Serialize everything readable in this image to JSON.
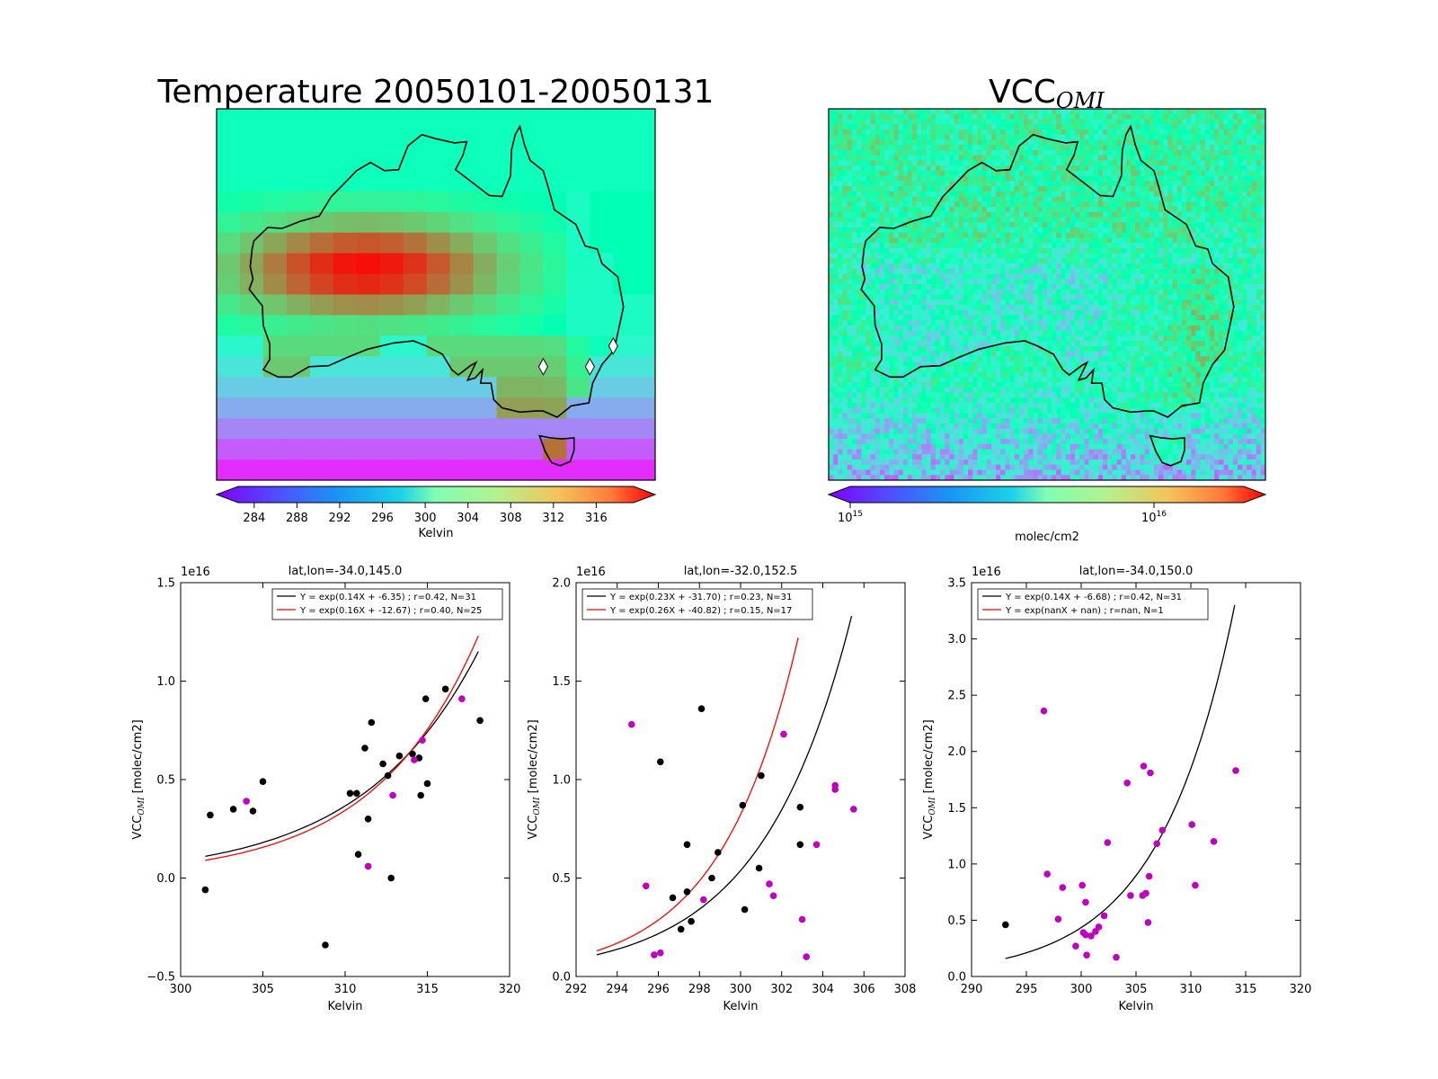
{
  "colors": {
    "black_series": "#000000",
    "red_series": "#ff0000",
    "magenta_points": "#bf00bf",
    "colormap": "rainbow"
  },
  "maps": [
    {
      "id": "temperature-map",
      "title": "Temperature 20050101-20050131",
      "colorbar": {
        "label": "Kelvin",
        "ticks": [
          "284",
          "288",
          "292",
          "296",
          "300",
          "304",
          "308",
          "312",
          "316"
        ],
        "range": [
          282.5,
          319.5
        ],
        "extend": "both"
      },
      "markers": [
        {
          "lat": -34.0,
          "lon": 145.0
        },
        {
          "lat": -34.0,
          "lon": 150.0
        },
        {
          "lat": -32.0,
          "lon": 152.5
        }
      ],
      "box": {
        "lat": [
          -38.5,
          -28.5
        ],
        "lon": [
          143.5,
          153.5
        ]
      }
    },
    {
      "id": "vcc-map",
      "title": "VCC",
      "title_sub": "OMI",
      "colorbar": {
        "label": "molec/cm2",
        "ticks": [
          {
            "base": "10",
            "exp": "15"
          },
          {
            "base": "10",
            "exp": "16"
          }
        ],
        "scale": "log",
        "extend": "both"
      }
    }
  ],
  "chart_data": [
    {
      "type": "scatter",
      "title": "lat,lon=-34.0,145.0",
      "xlabel": "Kelvin",
      "ylabel": "VCC",
      "ylabel_sub": "OMI",
      "ylabel_unit": " [molec/cm2]",
      "offset_text": "1e16",
      "xlim": [
        300,
        320
      ],
      "ylim": [
        -0.5,
        1.5
      ],
      "xticks": [
        "300",
        "305",
        "310",
        "315",
        "320"
      ],
      "yticks": [
        "−0.5",
        "0.0",
        "0.5",
        "1.0",
        "1.5"
      ],
      "legend": {
        "position": "upper right",
        "entries": [
          "Y = exp(0.14X + -6.35) ; r=0.42, N=31",
          "Y = exp(0.16X + -12.67) ; r=0.40, N=25"
        ]
      },
      "fits": [
        {
          "color": "black",
          "x_range": [
            301.5,
            318.1
          ],
          "y_range": [
            0.11,
            1.15
          ]
        },
        {
          "color": "red",
          "x_range": [
            301.5,
            318.1
          ],
          "y_range": [
            0.09,
            1.23
          ]
        }
      ],
      "points_black": [
        [
          301.5,
          -0.06
        ],
        [
          301.8,
          0.32
        ],
        [
          303.2,
          0.35
        ],
        [
          304.4,
          0.34
        ],
        [
          305.0,
          0.49
        ],
        [
          308.8,
          -0.34
        ],
        [
          310.3,
          0.43
        ],
        [
          310.7,
          0.43
        ],
        [
          310.8,
          0.12
        ],
        [
          311.2,
          0.66
        ],
        [
          311.4,
          0.3
        ],
        [
          311.6,
          0.79
        ],
        [
          312.3,
          0.58
        ],
        [
          312.6,
          0.52
        ],
        [
          312.8,
          0.0
        ],
        [
          313.3,
          0.62
        ],
        [
          314.1,
          0.63
        ],
        [
          314.5,
          0.61
        ],
        [
          314.6,
          0.42
        ],
        [
          314.9,
          0.91
        ],
        [
          315.0,
          0.48
        ],
        [
          316.1,
          0.96
        ],
        [
          318.2,
          0.8
        ]
      ],
      "points_magenta": [
        [
          304.0,
          0.39
        ],
        [
          311.4,
          0.06
        ],
        [
          312.9,
          0.42
        ],
        [
          314.2,
          0.6
        ],
        [
          314.7,
          0.7
        ],
        [
          317.1,
          0.91
        ]
      ]
    },
    {
      "type": "scatter",
      "title": "lat,lon=-32.0,152.5",
      "xlabel": "Kelvin",
      "ylabel": "VCC",
      "ylabel_sub": "OMI",
      "ylabel_unit": " [molec/cm2]",
      "offset_text": "1e16",
      "xlim": [
        292,
        308
      ],
      "ylim": [
        0.0,
        2.0
      ],
      "xticks": [
        "292",
        "294",
        "296",
        "298",
        "300",
        "302",
        "304",
        "306",
        "308"
      ],
      "yticks": [
        "0.0",
        "0.5",
        "1.0",
        "1.5",
        "2.0"
      ],
      "legend": {
        "position": "upper left",
        "entries": [
          "Y = exp(0.23X + -31.70) ; r=0.23, N=31",
          "Y = exp(0.26X + -40.82) ; r=0.15, N=17"
        ]
      },
      "fits": [
        {
          "color": "black",
          "x_range": [
            293.0,
            305.4
          ],
          "y_range": [
            0.11,
            1.83
          ]
        },
        {
          "color": "red",
          "x_range": [
            293.0,
            302.8
          ],
          "y_range": [
            0.13,
            1.72
          ]
        }
      ],
      "points_black": [
        [
          296.1,
          1.09
        ],
        [
          296.7,
          0.4
        ],
        [
          297.1,
          0.24
        ],
        [
          297.4,
          0.67
        ],
        [
          297.4,
          0.43
        ],
        [
          297.6,
          0.28
        ],
        [
          298.1,
          1.36
        ],
        [
          298.6,
          0.5
        ],
        [
          298.9,
          0.63
        ],
        [
          300.1,
          0.87
        ],
        [
          300.2,
          0.34
        ],
        [
          300.9,
          0.55
        ],
        [
          301.0,
          1.02
        ],
        [
          302.9,
          0.86
        ],
        [
          302.9,
          0.67
        ]
      ],
      "points_magenta": [
        [
          294.7,
          1.28
        ],
        [
          295.4,
          0.46
        ],
        [
          295.8,
          0.11
        ],
        [
          296.1,
          0.12
        ],
        [
          298.2,
          0.39
        ],
        [
          301.4,
          0.47
        ],
        [
          301.6,
          0.41
        ],
        [
          302.1,
          1.23
        ],
        [
          303.0,
          0.29
        ],
        [
          303.2,
          0.1
        ],
        [
          303.7,
          0.67
        ],
        [
          304.6,
          0.97
        ],
        [
          304.6,
          0.95
        ],
        [
          305.5,
          0.85
        ]
      ]
    },
    {
      "type": "scatter",
      "title": "lat,lon=-34.0,150.0",
      "xlabel": "Kelvin",
      "ylabel": "VCC",
      "ylabel_sub": "OMI",
      "ylabel_unit": " [molec/cm2]",
      "offset_text": "1e16",
      "xlim": [
        290,
        320
      ],
      "ylim": [
        0.0,
        3.5
      ],
      "xticks": [
        "290",
        "295",
        "300",
        "305",
        "310",
        "315",
        "320"
      ],
      "yticks": [
        "0.0",
        "0.5",
        "1.0",
        "1.5",
        "2.0",
        "2.5",
        "3.0",
        "3.5"
      ],
      "legend": {
        "position": "upper left",
        "entries": [
          "Y = exp(0.14X + -6.68) ; r=0.42, N=31",
          "Y = exp(nanX + nan) ; r=nan, N=1"
        ]
      },
      "fits": [
        {
          "color": "black",
          "x_range": [
            293.1,
            314.0
          ],
          "y_range": [
            0.16,
            3.3
          ]
        }
      ],
      "points_black": [
        [
          293.1,
          0.46
        ]
      ],
      "points_magenta": [
        [
          296.6,
          2.36
        ],
        [
          296.9,
          0.91
        ],
        [
          297.9,
          0.51
        ],
        [
          298.3,
          0.79
        ],
        [
          299.5,
          0.27
        ],
        [
          300.1,
          0.81
        ],
        [
          300.2,
          0.39
        ],
        [
          300.4,
          0.37
        ],
        [
          300.4,
          0.66
        ],
        [
          300.5,
          0.19
        ],
        [
          300.9,
          0.36
        ],
        [
          301.3,
          0.4
        ],
        [
          301.6,
          0.44
        ],
        [
          302.1,
          0.54
        ],
        [
          302.4,
          1.19
        ],
        [
          303.2,
          0.17
        ],
        [
          304.2,
          1.72
        ],
        [
          304.5,
          0.72
        ],
        [
          305.6,
          0.72
        ],
        [
          305.7,
          1.87
        ],
        [
          305.9,
          0.74
        ],
        [
          306.1,
          0.48
        ],
        [
          306.2,
          0.89
        ],
        [
          306.3,
          1.81
        ],
        [
          306.9,
          1.18
        ],
        [
          307.4,
          1.3
        ],
        [
          310.1,
          1.35
        ],
        [
          310.4,
          0.81
        ],
        [
          312.1,
          1.2
        ],
        [
          314.1,
          1.83
        ]
      ]
    }
  ]
}
